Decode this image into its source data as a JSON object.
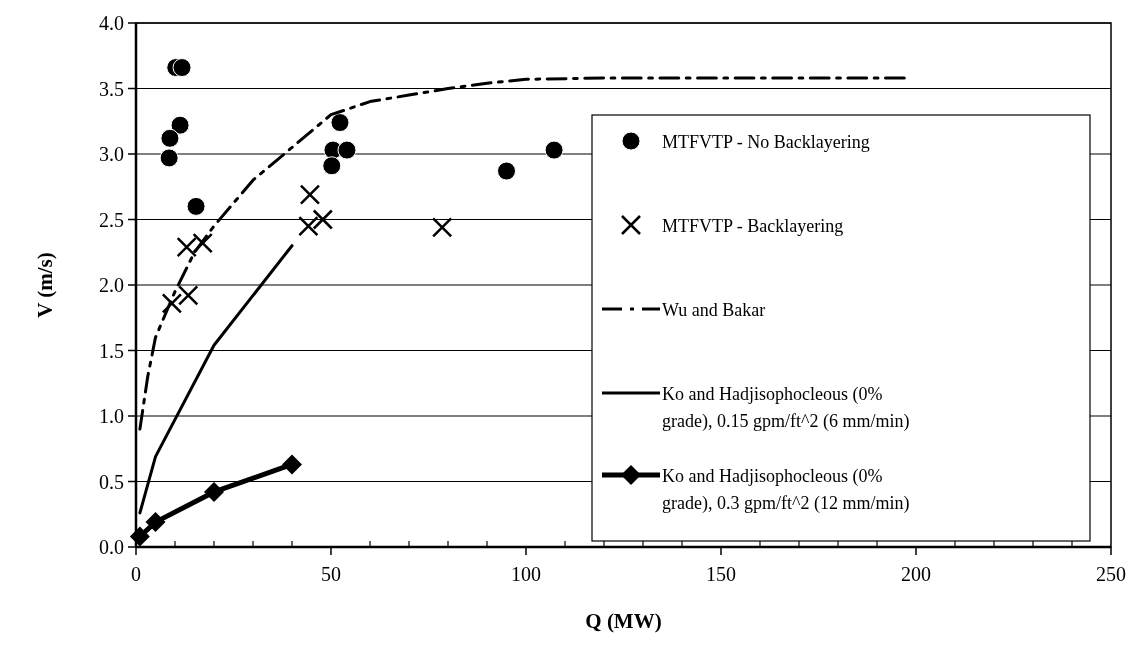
{
  "chart_data": {
    "type": "scatter",
    "xlabel": "Q (MW)",
    "ylabel": "V (m/s)",
    "xlim": [
      0,
      250
    ],
    "xticks": [
      0,
      50,
      100,
      150,
      200,
      250
    ],
    "ylim": [
      0,
      4
    ],
    "yticks": [
      {
        "value": 0,
        "label": "0.0"
      },
      {
        "value": 0.5,
        "label": "0.5"
      },
      {
        "value": 1,
        "label": "1.0"
      },
      {
        "value": 1.5,
        "label": "1.5"
      },
      {
        "value": 2,
        "label": "2.0"
      },
      {
        "value": 2.5,
        "label": "2.5"
      },
      {
        "value": 3,
        "label": "3.0"
      },
      {
        "value": 3.5,
        "label": "3.5"
      },
      {
        "value": 4,
        "label": "4.0"
      }
    ],
    "grid": "y",
    "legend": "right",
    "series": [
      {
        "name": "MTFVTP - No Backlayering",
        "marker": "circle",
        "color": "#000000",
        "x": [
          10.2,
          11.8,
          11.3,
          8.7,
          8.5,
          15.4,
          52.3,
          50.5,
          54.1,
          50.2,
          95,
          107.2
        ],
        "values": [
          3.66,
          3.66,
          3.22,
          3.12,
          2.97,
          2.6,
          3.24,
          3.03,
          3.03,
          2.91,
          2.87,
          3.03
        ]
      },
      {
        "name": "MTFVTP - Backlayering",
        "marker": "cross",
        "color": "#000000",
        "x": [
          9.2,
          13.4,
          13,
          17.1,
          44.6,
          44.2,
          47.9,
          78.5
        ],
        "values": [
          1.86,
          1.92,
          2.29,
          2.32,
          2.69,
          2.45,
          2.5,
          2.44
        ]
      },
      {
        "name": "Wu and Bakar",
        "type": "line",
        "marker": "none",
        "line_style": "dashed",
        "color": "#000000",
        "x": [
          1,
          3,
          5,
          10,
          15,
          20,
          30,
          40,
          50,
          60,
          70,
          80,
          90,
          100,
          120,
          150,
          197
        ],
        "values": [
          0.9,
          1.3,
          1.6,
          1.95,
          2.25,
          2.45,
          2.8,
          3.05,
          3.3,
          3.4,
          3.45,
          3.5,
          3.54,
          3.57,
          3.58,
          3.58,
          3.58
        ]
      },
      {
        "name": "Ko and Hadjisophocleous (0% grade), 0.15 gpm/ft^2 (6 mm/min)",
        "type": "line",
        "marker": "none",
        "line_style": "solid",
        "color": "#000000",
        "x": [
          1,
          5,
          20,
          40
        ],
        "values": [
          0.26,
          0.69,
          1.54,
          2.3
        ]
      },
      {
        "name": "Ko and Hadjisophocleous (0% grade), 0.3 gpm/ft^2 (12 mm/min)",
        "type": "line",
        "marker": "diamond",
        "line_style": "solid",
        "color": "#000000",
        "x": [
          1,
          5,
          20,
          40
        ],
        "values": [
          0.08,
          0.19,
          0.42,
          0.63
        ]
      }
    ]
  }
}
